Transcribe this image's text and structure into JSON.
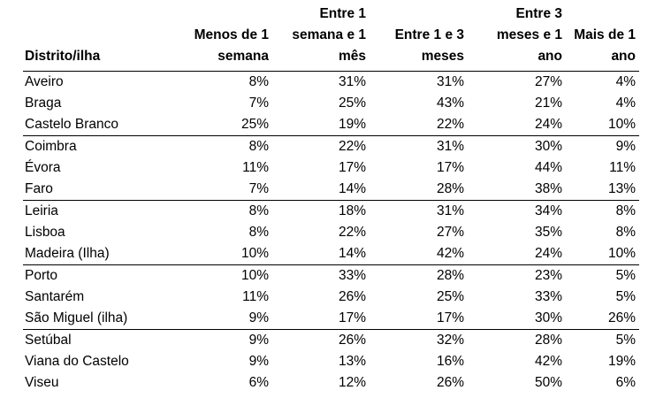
{
  "table": {
    "headers": [
      "Distrito/ilha",
      "Menos de 1 semana",
      "Entre 1 semana e 1 mês",
      "Entre 1 e 3 meses",
      "Entre 3 meses e 1 ano",
      "Mais de 1 ano"
    ],
    "rows": [
      {
        "name": "Aveiro",
        "values": [
          "8%",
          "31%",
          "31%",
          "27%",
          "4%"
        ]
      },
      {
        "name": "Braga",
        "values": [
          "7%",
          "25%",
          "43%",
          "21%",
          "4%"
        ]
      },
      {
        "name": "Castelo Branco",
        "values": [
          "25%",
          "19%",
          "22%",
          "24%",
          "10%"
        ]
      },
      {
        "name": "Coimbra",
        "values": [
          "8%",
          "22%",
          "31%",
          "30%",
          "9%"
        ]
      },
      {
        "name": "Évora",
        "values": [
          "11%",
          "17%",
          "17%",
          "44%",
          "11%"
        ]
      },
      {
        "name": "Faro",
        "values": [
          "7%",
          "14%",
          "28%",
          "38%",
          "13%"
        ]
      },
      {
        "name": "Leiria",
        "values": [
          "8%",
          "18%",
          "31%",
          "34%",
          "8%"
        ]
      },
      {
        "name": "Lisboa",
        "values": [
          "8%",
          "22%",
          "27%",
          "35%",
          "8%"
        ]
      },
      {
        "name": "Madeira (Ilha)",
        "values": [
          "10%",
          "14%",
          "42%",
          "24%",
          "10%"
        ]
      },
      {
        "name": "Porto",
        "values": [
          "10%",
          "33%",
          "28%",
          "23%",
          "5%"
        ]
      },
      {
        "name": "Santarém",
        "values": [
          "11%",
          "26%",
          "25%",
          "33%",
          "5%"
        ]
      },
      {
        "name": "São Miguel (ilha)",
        "values": [
          "9%",
          "17%",
          "17%",
          "30%",
          "26%"
        ]
      },
      {
        "name": "Setúbal",
        "values": [
          "9%",
          "26%",
          "32%",
          "28%",
          "5%"
        ]
      },
      {
        "name": "Viana do Castelo",
        "values": [
          "9%",
          "13%",
          "16%",
          "42%",
          "19%"
        ]
      },
      {
        "name": "Viseu",
        "values": [
          "6%",
          "12%",
          "26%",
          "50%",
          "6%"
        ]
      }
    ]
  }
}
